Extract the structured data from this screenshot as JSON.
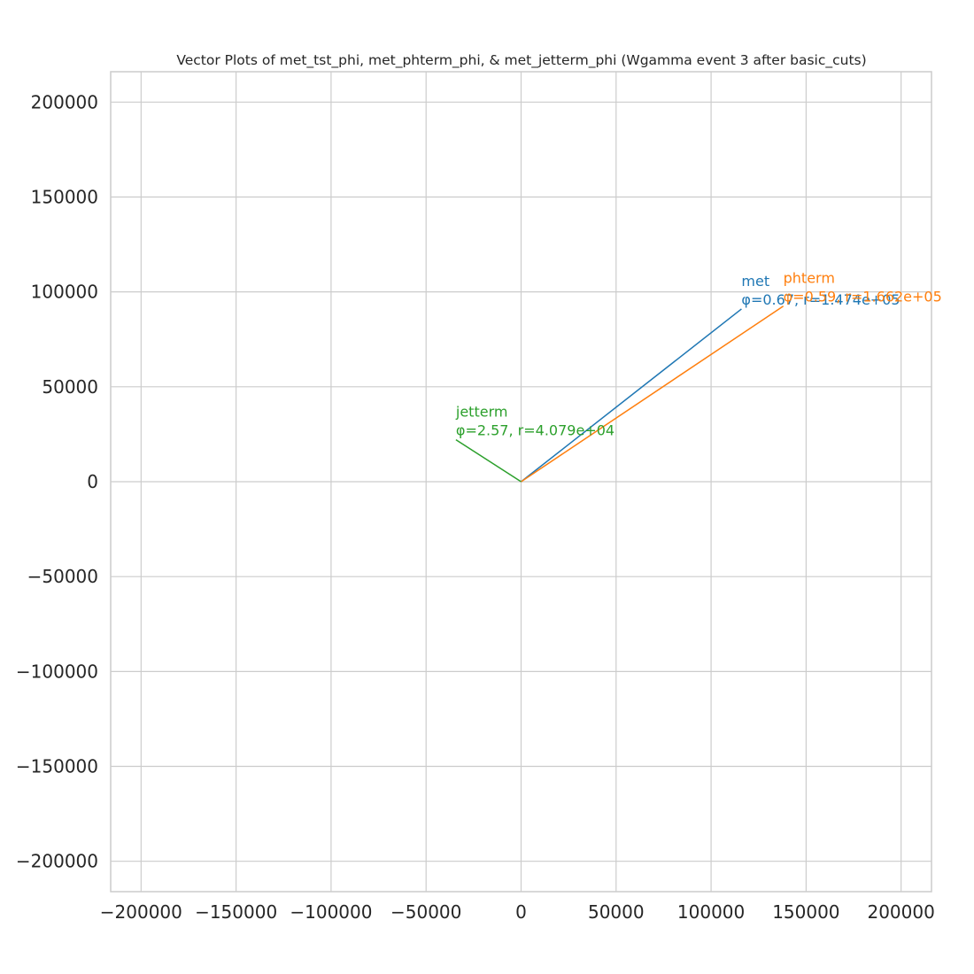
{
  "chart_data": {
    "type": "line",
    "title": "Vector Plots of met_tst_phi, met_phterm_phi, & met_jetterm_phi (Wgamma event 3 after basic_cuts)",
    "xlabel": "",
    "ylabel": "",
    "xlim": [
      -216000,
      216000
    ],
    "ylim": [
      -216000,
      216000
    ],
    "x_ticks": [
      -200000,
      -150000,
      -100000,
      -50000,
      0,
      50000,
      100000,
      150000,
      200000
    ],
    "y_ticks": [
      -200000,
      -150000,
      -100000,
      -50000,
      0,
      50000,
      100000,
      150000,
      200000
    ],
    "x_tick_labels": [
      "−200000",
      "−150000",
      "−100000",
      "−50000",
      "0",
      "50000",
      "100000",
      "150000",
      "200000"
    ],
    "y_tick_labels": [
      "−200000",
      "−150000",
      "−100000",
      "−50000",
      "0",
      "50000",
      "100000",
      "150000",
      "200000"
    ],
    "grid": true,
    "series": [
      {
        "name": "met",
        "annotation": "φ=0.67, r=1.474e+05",
        "color": "#1f77b4",
        "x": [
          0,
          116000
        ],
        "y": [
          0,
          91000
        ]
      },
      {
        "name": "phterm",
        "annotation": "φ=0.59, r=1.662e+05",
        "color": "#ff7f0e",
        "x": [
          0,
          138000
        ],
        "y": [
          0,
          92500
        ]
      },
      {
        "name": "jetterm",
        "annotation": "φ=2.57, r=4.079e+04",
        "color": "#2ca02c",
        "x": [
          0,
          -34300
        ],
        "y": [
          0,
          22100
        ]
      }
    ]
  }
}
